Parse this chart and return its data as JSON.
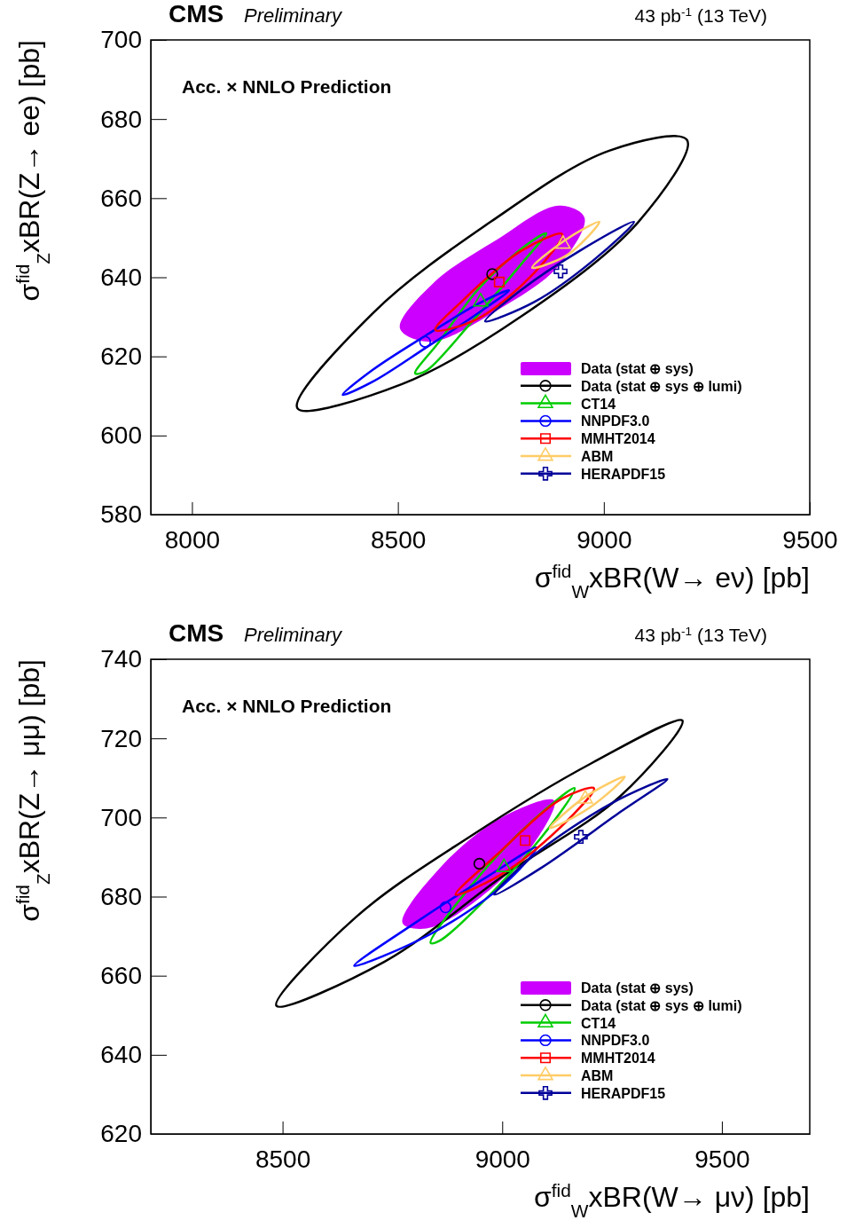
{
  "chart_data": [
    {
      "type": "scatter",
      "title": "CMS",
      "subtitle": "Preliminary",
      "xlabel": "σ$^{fid}$$_{W}$xBR(W→ eν) [pb]",
      "ylabel": "σ$^{fid}$$_{Z}$xBR(Z→ ee) [pb]",
      "annotations": [
        "Acc. × NNLO Prediction",
        "43 pb$^{-1}$ (13 TeV)"
      ],
      "xlim": [
        7900,
        9500
      ],
      "ylim": [
        580,
        700
      ],
      "xticks": [
        8000,
        8500,
        9000,
        9500
      ],
      "yticks": [
        580,
        600,
        620,
        640,
        660,
        680,
        700
      ],
      "legend": "bottom right",
      "series": [
        {
          "name": "Data (stat ⊕ sys)",
          "type": "area",
          "color": "#cc00ff"
        },
        {
          "name": "Data (stat ⊕ sys ⊕ lumi)",
          "type": "scatter",
          "color": "#000000",
          "marker": "circle",
          "x": [
            8729
          ],
          "values": [
            640.8
          ]
        },
        {
          "name": "CT14",
          "type": "scatter",
          "color": "#00cc00",
          "marker": "triangle",
          "x": [
            8701
          ],
          "values": [
            633.8
          ]
        },
        {
          "name": "NNPDF3.0",
          "type": "scatter",
          "color": "#0000ff",
          "marker": "circle",
          "x": [
            8566
          ],
          "values": [
            623.7
          ]
        },
        {
          "name": "MMHT2014",
          "type": "scatter",
          "color": "#ff0000",
          "marker": "square",
          "x": [
            8746
          ],
          "values": [
            638.8
          ]
        },
        {
          "name": "ABM",
          "type": "scatter",
          "color": "#ffcc66",
          "marker": "triangle",
          "x": [
            8901
          ],
          "values": [
            648.4
          ]
        },
        {
          "name": "HERAPDF15",
          "type": "scatter",
          "color": "#000099",
          "marker": "cross",
          "x": [
            8895
          ],
          "values": [
            641.5
          ]
        }
      ]
    },
    {
      "type": "scatter",
      "title": "CMS",
      "subtitle": "Preliminary",
      "xlabel": "σ$^{fid}$$_{W}$xBR(W→ μν) [pb]",
      "ylabel": "σ$^{fid}$$_{Z}$xBR(Z→ μμ) [pb]",
      "annotations": [
        "Acc. × NNLO Prediction",
        "43 pb$^{-1}$ (13 TeV)"
      ],
      "xlim": [
        8200,
        9700
      ],
      "ylim": [
        620,
        740
      ],
      "xticks": [
        8500,
        9000,
        9500
      ],
      "yticks": [
        620,
        640,
        660,
        680,
        700,
        720,
        740
      ],
      "legend": "bottom right",
      "series": [
        {
          "name": "Data (stat ⊕ sys)",
          "type": "area",
          "color": "#cc00ff"
        },
        {
          "name": "Data (stat ⊕ sys ⊕ lumi)",
          "type": "scatter",
          "color": "#000000",
          "marker": "circle",
          "x": [
            8948
          ],
          "values": [
            688.3
          ]
        },
        {
          "name": "CT14",
          "type": "scatter",
          "color": "#00cc00",
          "marker": "triangle",
          "x": [
            9004
          ],
          "values": [
            687.4
          ]
        },
        {
          "name": "NNPDF3.0",
          "type": "scatter",
          "color": "#0000ff",
          "marker": "circle",
          "x": [
            8871
          ],
          "values": [
            677.3
          ]
        },
        {
          "name": "MMHT2014",
          "type": "scatter",
          "color": "#ff0000",
          "marker": "square",
          "x": [
            9052
          ],
          "values": [
            694.2
          ]
        },
        {
          "name": "ABM",
          "type": "scatter",
          "color": "#ffcc66",
          "marker": "triangle",
          "x": [
            9189
          ],
          "values": [
            704.7
          ]
        },
        {
          "name": "HERAPDF15",
          "type": "scatter",
          "color": "#000099",
          "marker": "cross",
          "x": [
            9179
          ],
          "values": [
            695.1
          ]
        }
      ]
    }
  ]
}
